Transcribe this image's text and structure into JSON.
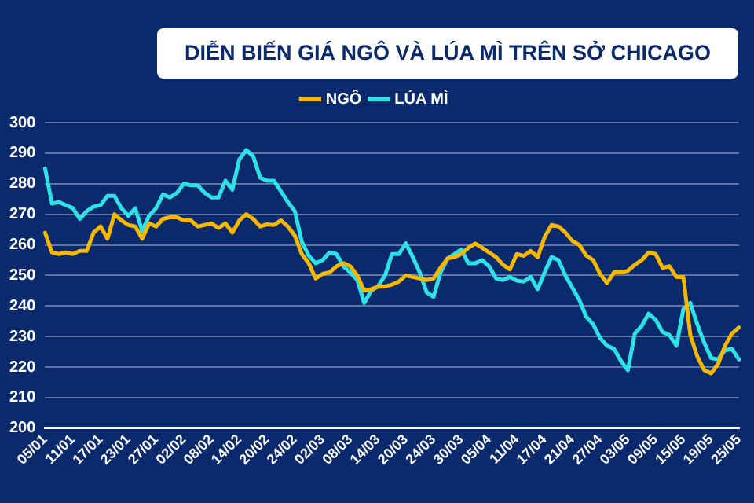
{
  "chart_data": {
    "type": "line",
    "title": "DIỄN BIẾN GIÁ NGÔ VÀ LÚA MÌ TRÊN SỞ CHICAGO",
    "categories": [
      "05/01",
      null,
      null,
      null,
      "11/01",
      null,
      null,
      null,
      "17/01",
      null,
      null,
      null,
      "23/01",
      null,
      null,
      null,
      "27/01",
      null,
      null,
      null,
      "02/02",
      null,
      null,
      null,
      "08/02",
      null,
      null,
      null,
      "14/02",
      null,
      null,
      null,
      "20/02",
      null,
      null,
      null,
      "24/02",
      null,
      null,
      null,
      "02/03",
      null,
      null,
      null,
      "08/03",
      null,
      null,
      null,
      "14/03",
      null,
      null,
      null,
      "20/03",
      null,
      null,
      null,
      "24/03",
      null,
      null,
      null,
      "30/03",
      null,
      null,
      null,
      "05/04",
      null,
      null,
      null,
      "11/04",
      null,
      null,
      null,
      "17/04",
      null,
      null,
      null,
      "21/04",
      null,
      null,
      null,
      "27/04",
      null,
      null,
      null,
      "03/05",
      null,
      null,
      null,
      "09/05",
      null,
      null,
      null,
      "15/05",
      null,
      null,
      null,
      "19/05",
      null,
      null,
      null,
      "25/05"
    ],
    "series": [
      {
        "name": "NGÔ",
        "color": "#f5b700",
        "values": [
          264,
          257.5,
          257,
          257.5,
          257,
          258,
          258,
          264,
          266,
          262,
          270,
          268,
          266.5,
          266,
          262,
          267,
          266,
          268.5,
          269,
          269,
          268,
          268,
          266,
          266.5,
          267,
          265.5,
          267,
          264,
          268,
          270,
          268.5,
          266,
          266.7,
          266.5,
          268,
          266,
          263,
          257,
          254,
          249,
          250.5,
          251,
          253,
          254,
          253,
          250,
          245,
          245.5,
          246.3,
          246.4,
          247,
          248,
          250,
          249.5,
          249,
          248.5,
          249,
          252.5,
          255.5,
          256,
          257,
          259,
          260.4,
          259,
          257.5,
          256,
          253.5,
          252,
          257,
          256.4,
          258,
          256,
          262.5,
          266.5,
          266,
          264,
          261.3,
          260,
          256.5,
          255,
          250.5,
          247.5,
          251,
          251,
          251.5,
          253.5,
          255,
          257.5,
          257,
          252.5,
          253,
          249.5,
          249.5,
          230.5,
          223.5,
          219,
          218,
          221,
          227,
          231,
          233
        ]
      },
      {
        "name": "LÚA MÌ",
        "color": "#2de2e6",
        "values": [
          285,
          273.5,
          274,
          273,
          272,
          268.5,
          271,
          272.5,
          273,
          276,
          276,
          272,
          269.5,
          272,
          264.5,
          269.5,
          272,
          276.5,
          275.5,
          277,
          280,
          279.5,
          279.5,
          277,
          275.5,
          275.5,
          281,
          278,
          288,
          291,
          289,
          282,
          281,
          281,
          277.5,
          274,
          271,
          261,
          256.5,
          254,
          255,
          257.5,
          257,
          253,
          251,
          248.5,
          241,
          245,
          246.5,
          250,
          257,
          257,
          260.5,
          256,
          251,
          244.5,
          243,
          251,
          255.5,
          257,
          258.5,
          254,
          254,
          255,
          253,
          249,
          248.5,
          249.5,
          248.3,
          248,
          249.5,
          245.5,
          251,
          256,
          255,
          250,
          246,
          242,
          236.5,
          234,
          229.5,
          227,
          226,
          222,
          219,
          231,
          233.5,
          237.5,
          235.5,
          231.5,
          230.5,
          227,
          239,
          241,
          234,
          228,
          223,
          222.5,
          225.5,
          226,
          222.5
        ]
      }
    ],
    "ylim": [
      200,
      300
    ],
    "yticks": [
      200,
      210,
      220,
      230,
      240,
      250,
      260,
      270,
      280,
      290,
      300
    ],
    "grid": "y",
    "legend": "top",
    "marker": "none",
    "line_style": "solid"
  }
}
